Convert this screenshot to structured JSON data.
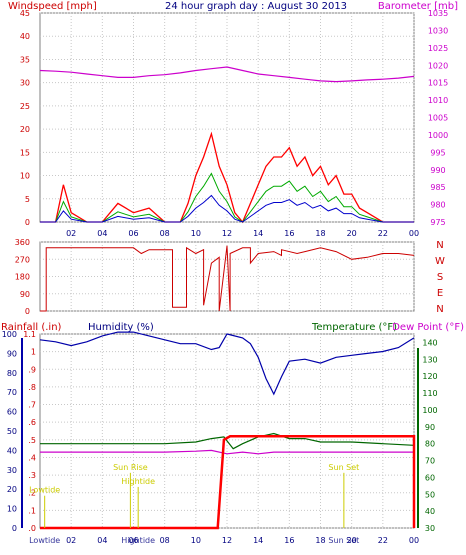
{
  "header": {
    "left_label": "Windspeed [mph]",
    "title": "24 hour graph day : August 30 2013",
    "right_label": "Barometer [mb]"
  },
  "bottom_header": {
    "rain_label": "Rainfall (.in)",
    "humidity_label": "Humidity (%)",
    "temp_label": "Temperature (°F)",
    "dew_label": "Dew Point (°F)"
  },
  "colors": {
    "wind": "#ff0000",
    "gust_green": "#00aa00",
    "gust_blue": "#0000cc",
    "barometer": "#cc00cc",
    "direction": "#cc0000",
    "rain": "#ff0000",
    "humidity": "#0000aa",
    "temperature": "#006600",
    "dewpoint": "#cc00cc",
    "tide_sun": "#cccc00"
  },
  "chart_data": [
    {
      "type": "line",
      "id": "wind_baro",
      "x_ticks": [
        "02",
        "04",
        "06",
        "08",
        "10",
        "12",
        "14",
        "16",
        "18",
        "20",
        "22",
        "00"
      ],
      "ylim_left": [
        0,
        45
      ],
      "yticks_left": [
        "0",
        "5",
        "10",
        "15",
        "20",
        "25",
        "30",
        "35",
        "40",
        "45"
      ],
      "ylim_right": [
        975,
        1035
      ],
      "yticks_right": [
        "975",
        "980",
        "985",
        "990",
        "995",
        "1000",
        "1005",
        "1010",
        "1015",
        "1020",
        "1025",
        "1030",
        "1035"
      ],
      "series": [
        {
          "name": "Barometer",
          "axis": "right",
          "x": [
            0,
            1,
            2,
            3,
            4,
            5,
            6,
            7,
            8,
            9,
            10,
            11,
            12,
            13,
            14,
            15,
            16,
            17,
            18,
            19,
            20,
            21,
            22,
            23,
            24
          ],
          "y": [
            1018.5,
            1018.3,
            1018,
            1017.5,
            1017,
            1016.5,
            1016.5,
            1017,
            1017.3,
            1017.8,
            1018.5,
            1019,
            1019.5,
            1018.5,
            1017.5,
            1017,
            1016.5,
            1016,
            1015.5,
            1015.3,
            1015.5,
            1015.8,
            1016,
            1016.3,
            1016.8
          ]
        },
        {
          "name": "Windspeed",
          "axis": "left",
          "x": [
            0,
            1,
            1.5,
            2,
            3,
            4,
            5,
            6,
            7,
            8,
            9,
            9.5,
            10,
            10.5,
            11,
            11.5,
            12,
            12.5,
            13,
            14,
            14.5,
            15,
            15.5,
            16,
            16.5,
            17,
            17.5,
            18,
            18.5,
            19,
            19.5,
            20,
            20.5,
            21,
            22,
            23,
            24
          ],
          "y": [
            0,
            0,
            8,
            2,
            0,
            0,
            4,
            2,
            3,
            0,
            0,
            4,
            10,
            14,
            19,
            12,
            8,
            2,
            0,
            8,
            12,
            14,
            14,
            16,
            12,
            14,
            10,
            12,
            8,
            10,
            6,
            6,
            3,
            2,
            0,
            0,
            0
          ]
        }
      ]
    },
    {
      "type": "line",
      "id": "direction",
      "ylim": [
        0,
        360
      ],
      "yticks": [
        "0",
        "90",
        "180",
        "270",
        "360"
      ],
      "compass": [
        "N",
        "W",
        "S",
        "E",
        "N"
      ],
      "series": [
        {
          "name": "Wind Direction",
          "x": [
            0,
            0.4,
            0.4,
            1,
            3,
            6,
            6.5,
            7,
            8.5,
            8.5,
            9.4,
            9.4,
            10,
            10.5,
            10.5,
            11,
            11.5,
            11.5,
            12,
            12.2,
            12.2,
            13,
            13.5,
            13.5,
            14,
            15,
            15.5,
            15.5,
            16.5,
            17,
            18,
            19,
            20,
            21,
            22,
            23,
            24
          ],
          "y": [
            0,
            0,
            330,
            330,
            330,
            330,
            300,
            320,
            320,
            20,
            20,
            330,
            300,
            320,
            30,
            250,
            280,
            0,
            340,
            0,
            300,
            330,
            330,
            250,
            300,
            310,
            290,
            320,
            300,
            310,
            330,
            310,
            270,
            280,
            300,
            300,
            290
          ]
        }
      ]
    },
    {
      "type": "line",
      "id": "rain_hum_temp",
      "x_ticks": [
        "02",
        "04",
        "06",
        "08",
        "10",
        "12",
        "14",
        "16",
        "18",
        "20",
        "22",
        "00"
      ],
      "ylim_humidity": [
        0,
        100
      ],
      "yticks_humidity": [
        "0",
        "10",
        "20",
        "30",
        "40",
        "50",
        "60",
        "70",
        "80",
        "90",
        "100"
      ],
      "ylim_rain": [
        0,
        1.1
      ],
      "yticks_rain": [
        ".0",
        ".1",
        ".2",
        ".3",
        ".4",
        ".5",
        ".6",
        ".7",
        ".8",
        ".9",
        "1",
        "1.1"
      ],
      "ylim_temp": [
        30,
        145
      ],
      "yticks_temp": [
        "30",
        "40",
        "50",
        "60",
        "70",
        "80",
        "90",
        "100",
        "110",
        "120",
        "130",
        "140"
      ],
      "series": [
        {
          "name": "Humidity",
          "axis": "humidity",
          "x": [
            0,
            1,
            2,
            3,
            4,
            5,
            6,
            7,
            8,
            9,
            10,
            11,
            11.5,
            12,
            13,
            13.5,
            14,
            14.5,
            15,
            15.5,
            16,
            17,
            18,
            19,
            20,
            21,
            22,
            23,
            24
          ],
          "y": [
            97,
            96,
            94,
            96,
            99,
            101,
            101,
            99,
            97,
            95,
            95,
            92,
            93,
            100,
            98,
            95,
            88,
            77,
            69,
            78,
            86,
            87,
            85,
            88,
            89,
            90,
            91,
            93,
            98
          ]
        },
        {
          "name": "Rainfall",
          "axis": "rain",
          "x": [
            0,
            11.4,
            11.8,
            12.2,
            13,
            15,
            24
          ],
          "y": [
            0,
            0,
            0.5,
            0.52,
            0.52,
            0.52,
            0.52
          ]
        },
        {
          "name": "Temperature",
          "axis": "temp",
          "x": [
            0,
            2,
            4,
            6,
            8,
            10,
            11,
            11.8,
            12.4,
            13,
            14,
            15,
            16,
            17,
            18,
            20,
            22,
            24
          ],
          "y": [
            80,
            80,
            80,
            80,
            80,
            81,
            83,
            84,
            77,
            80,
            84,
            86,
            83,
            83,
            81,
            81,
            80,
            79
          ]
        },
        {
          "name": "Dew Point",
          "axis": "temp",
          "x": [
            0,
            2,
            4,
            6,
            8,
            10,
            11,
            12,
            13,
            14,
            15,
            16,
            17,
            18,
            20,
            22,
            24
          ],
          "y": [
            75,
            75,
            75,
            75,
            75,
            75.5,
            76,
            74,
            75,
            74,
            75,
            75,
            75,
            75,
            75,
            75,
            75
          ]
        }
      ],
      "annotations": [
        {
          "text": "Lowtide",
          "x": 0.3,
          "label_y": 0.2
        },
        {
          "text": "Sun Rise",
          "x": 5.8,
          "label_y": 0.33
        },
        {
          "text": "Hightide",
          "x": 6.3,
          "label_y": 0.25
        },
        {
          "text": "Sun Set",
          "x": 19.5,
          "label_y": 0.33
        }
      ],
      "bottom_labels": [
        {
          "text": "Lowtide",
          "x": 0.3
        },
        {
          "text": "Hightide",
          "x": 6.3
        },
        {
          "text": "Sun Set",
          "x": 19.5
        }
      ]
    }
  ]
}
